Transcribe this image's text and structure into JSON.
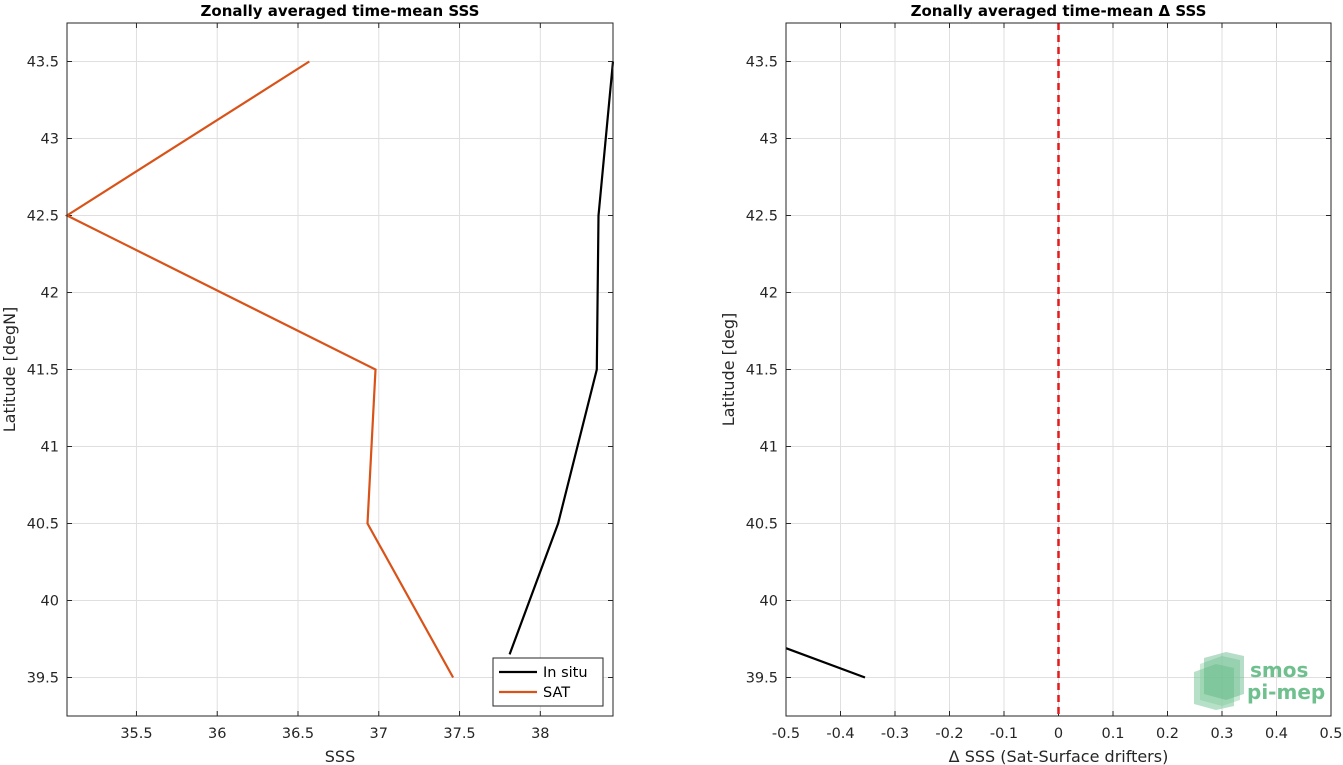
{
  "chart_data": [
    {
      "type": "line",
      "title": "Zonally averaged time-mean SSS",
      "xlabel": "SSS",
      "ylabel": "Latitude [degN]",
      "xlim": [
        35.07,
        38.45
      ],
      "ylim": [
        39.25,
        43.75
      ],
      "xticks": [
        "35.5",
        "36",
        "36.5",
        "37",
        "37.5",
        "38"
      ],
      "yticks": [
        "39.5",
        "40",
        "40.5",
        "41",
        "41.5",
        "42",
        "42.5",
        "43",
        "43.5"
      ],
      "grid": true,
      "legend_position": "bottom-right",
      "series": [
        {
          "name": "In situ",
          "color": "#000000",
          "points": [
            [
              37.81,
              39.65
            ],
            [
              38.11,
              40.5
            ],
            [
              38.35,
              41.5
            ],
            [
              38.36,
              42.5
            ],
            [
              38.45,
              43.5
            ]
          ]
        },
        {
          "name": "SAT",
          "color": "#d95319",
          "points": [
            [
              37.46,
              39.5
            ],
            [
              36.93,
              40.5
            ],
            [
              36.98,
              41.5
            ],
            [
              35.07,
              42.5
            ],
            [
              36.57,
              43.5
            ]
          ]
        }
      ]
    },
    {
      "type": "line",
      "title": "Zonally averaged time-mean Δ SSS",
      "xlabel": "Δ SSS (Sat-Surface drifters)",
      "ylabel": "Latitude [deg]",
      "xlim": [
        -0.5,
        0.5
      ],
      "ylim": [
        39.25,
        43.75
      ],
      "xticks": [
        "-0.5",
        "-0.4",
        "-0.3",
        "-0.2",
        "-0.1",
        "0",
        "0.1",
        "0.2",
        "0.3",
        "0.4",
        "0.5"
      ],
      "yticks": [
        "39.5",
        "40",
        "40.5",
        "41",
        "41.5",
        "42",
        "42.5",
        "43",
        "43.5"
      ],
      "grid": true,
      "reference_line": {
        "x": 0,
        "color": "#e41a1c",
        "style": "dashed"
      },
      "series": [
        {
          "color": "#000000",
          "points": [
            [
              -0.5,
              39.69
            ],
            [
              -0.355,
              39.5
            ]
          ]
        }
      ]
    }
  ],
  "logo": {
    "line1": "smos",
    "line2": "pi-mep",
    "color": "#6fbf8f"
  }
}
